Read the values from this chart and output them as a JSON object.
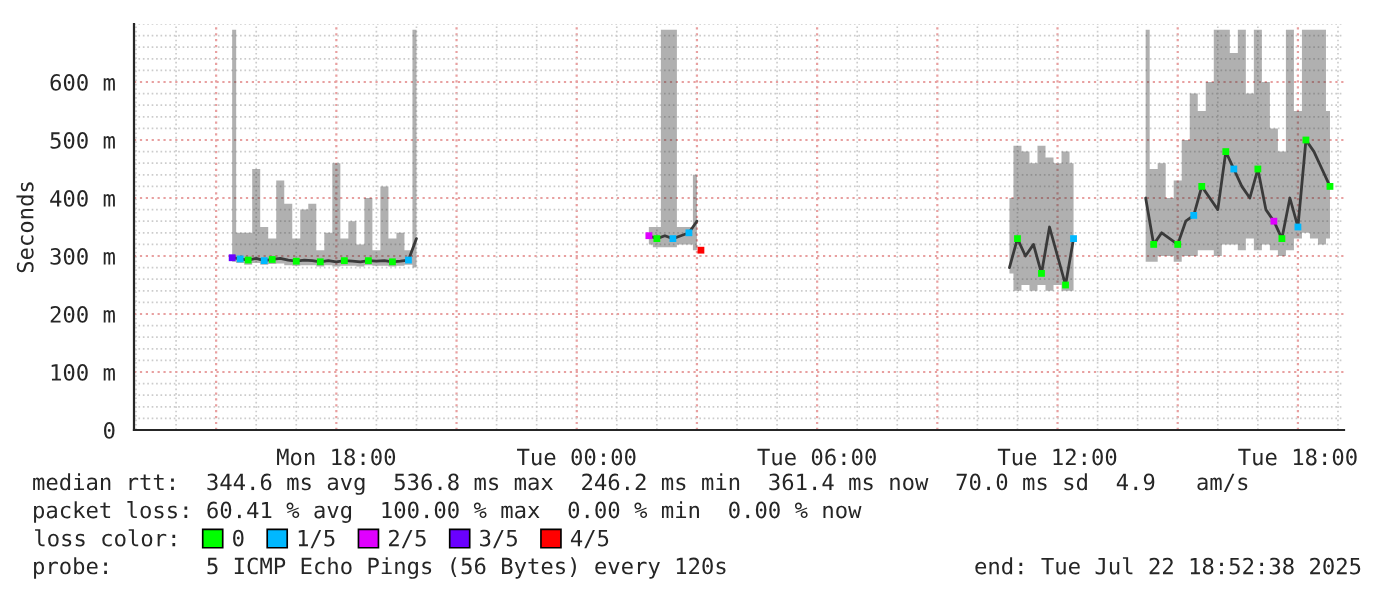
{
  "chart_data": {
    "type": "line",
    "ylabel": "Seconds",
    "legend_title": "loss color:",
    "legend": "bottom",
    "grid": true,
    "xlim": [
      "2025-07-21T12:57",
      "2025-07-22T19:09"
    ],
    "xticks": [
      {
        "value": "2025-07-21T15:00",
        "label": null
      },
      {
        "value": "2025-07-21T18:00",
        "label": "Mon 18:00"
      },
      {
        "value": "2025-07-21T21:00",
        "label": null
      },
      {
        "value": "2025-07-22T00:00",
        "label": "Tue 00:00"
      },
      {
        "value": "2025-07-22T03:00",
        "label": null
      },
      {
        "value": "2025-07-22T06:00",
        "label": "Tue 06:00"
      },
      {
        "value": "2025-07-22T09:00",
        "label": null
      },
      {
        "value": "2025-07-22T12:00",
        "label": "Tue 12:00"
      },
      {
        "value": "2025-07-22T15:00",
        "label": null
      },
      {
        "value": "2025-07-22T18:00",
        "label": "Tue 18:00"
      }
    ],
    "ylim": [
      0,
      700
    ],
    "yticks": [
      0,
      {
        "value": 100,
        "label": "100 m"
      },
      {
        "value": 200,
        "label": "200 m"
      },
      {
        "value": 300,
        "label": "300 m"
      },
      {
        "value": 400,
        "label": "400 m"
      },
      {
        "value": 500,
        "label": "500 m"
      },
      {
        "value": 600,
        "label": "600 m"
      }
    ],
    "annotations": [
      "median rtt:  344.6 ms avg  536.8 ms max  246.2 ms min  361.4 ms now  70.0 ms sd  4.9   am/s",
      "packet loss: 60.41 % avg  100.00 % max  0.00 % min  0.00 % now",
      "probe:       5 ICMP Echo Pings (56 Bytes) every 120s",
      "end: Tue Jul 22 18:52:38 2025"
    ],
    "series": [
      {
        "color": "#3a3a3a",
        "x": [
          "2025-07-21T15:24",
          "2025-07-21T15:36",
          "2025-07-21T15:48",
          "2025-07-21T16:00",
          "2025-07-21T16:12",
          "2025-07-21T16:24",
          "2025-07-21T16:36",
          "2025-07-21T16:48",
          "2025-07-21T17:00",
          "2025-07-21T17:12",
          "2025-07-21T17:24",
          "2025-07-21T17:36",
          "2025-07-21T17:48",
          "2025-07-21T18:00",
          "2025-07-21T18:12",
          "2025-07-21T18:24",
          "2025-07-21T18:36",
          "2025-07-21T18:48",
          "2025-07-21T19:00",
          "2025-07-21T19:12",
          "2025-07-21T19:24",
          "2025-07-21T19:36",
          "2025-07-21T19:48",
          "2025-07-21T20:00",
          "2025-07-21T20:12",
          "2025-07-22T01:48",
          "2025-07-22T02:00",
          "2025-07-22T02:12",
          "2025-07-22T02:24",
          "2025-07-22T02:36",
          "2025-07-22T02:48",
          "2025-07-22T03:00",
          "2025-07-22T03:12",
          "2025-07-22T10:48",
          "2025-07-22T11:00",
          "2025-07-22T11:12",
          "2025-07-22T11:24",
          "2025-07-22T11:36",
          "2025-07-22T11:48",
          "2025-07-22T12:00",
          "2025-07-22T12:12",
          "2025-07-22T12:24",
          "2025-07-22T12:36",
          "2025-07-22T14:12",
          "2025-07-22T14:24",
          "2025-07-22T14:36",
          "2025-07-22T14:48",
          "2025-07-22T15:00",
          "2025-07-22T15:12",
          "2025-07-22T15:24",
          "2025-07-22T15:36",
          "2025-07-22T15:48",
          "2025-07-22T16:00",
          "2025-07-22T16:12",
          "2025-07-22T16:24",
          "2025-07-22T16:36",
          "2025-07-22T16:48",
          "2025-07-22T17:00",
          "2025-07-22T17:12",
          "2025-07-22T17:24",
          "2025-07-22T17:36",
          "2025-07-22T17:48",
          "2025-07-22T18:00",
          "2025-07-22T18:12",
          "2025-07-22T18:24",
          "2025-07-22T18:36",
          "2025-07-22T18:48"
        ],
        "values": [
          297,
          295,
          293,
          296,
          292,
          294,
          296,
          293,
          291,
          293,
          292,
          290,
          292,
          290,
          292,
          291,
          290,
          292,
          291,
          292,
          290,
          291,
          293,
          330,
          null,
          335,
          330,
          335,
          330,
          335,
          340,
          360,
          null,
          280,
          330,
          300,
          320,
          270,
          350,
          300,
          250,
          330,
          null,
          400,
          320,
          340,
          330,
          320,
          360,
          370,
          420,
          400,
          380,
          480,
          450,
          420,
          400,
          450,
          380,
          360,
          330,
          400,
          350,
          500,
          480,
          450,
          420
        ],
        "lower": [
          290,
          288,
          285,
          288,
          285,
          286,
          287,
          284,
          283,
          284,
          284,
          282,
          284,
          282,
          283,
          283,
          282,
          284,
          283,
          283,
          282,
          283,
          285,
          280,
          null,
          320,
          315,
          315,
          315,
          320,
          320,
          310,
          null,
          270,
          240,
          250,
          240,
          250,
          240,
          250,
          240,
          240,
          null,
          290,
          290,
          300,
          300,
          290,
          300,
          300,
          310,
          310,
          300,
          320,
          320,
          310,
          330,
          310,
          320,
          310,
          300,
          310,
          330,
          340,
          330,
          320,
          330
        ],
        "upper": [
          690,
          340,
          340,
          450,
          350,
          330,
          430,
          390,
          330,
          380,
          390,
          310,
          340,
          460,
          330,
          360,
          320,
          400,
          310,
          420,
          330,
          340,
          310,
          690,
          null,
          350,
          350,
          690,
          690,
          350,
          350,
          440,
          null,
          400,
          490,
          480,
          460,
          490,
          470,
          460,
          480,
          460,
          null,
          690,
          450,
          460,
          400,
          430,
          500,
          580,
          550,
          600,
          690,
          690,
          650,
          690,
          580,
          690,
          600,
          520,
          480,
          690,
          550,
          690,
          690,
          690,
          550
        ]
      },
      {
        "type": "scatter",
        "name": "0",
        "color": "#00ff00",
        "x": [
          "2025-07-21T15:48",
          "2025-07-21T16:24",
          "2025-07-21T17:00",
          "2025-07-21T17:36",
          "2025-07-21T18:12",
          "2025-07-21T18:48",
          "2025-07-21T19:24",
          "2025-07-22T02:00",
          "2025-07-22T11:00",
          "2025-07-22T11:36",
          "2025-07-22T12:12",
          "2025-07-22T14:24",
          "2025-07-22T15:00",
          "2025-07-22T15:36",
          "2025-07-22T16:12",
          "2025-07-22T17:00",
          "2025-07-22T17:36",
          "2025-07-22T18:12",
          "2025-07-22T18:48"
        ],
        "values": [
          293,
          294,
          291,
          290,
          292,
          292,
          290,
          330,
          330,
          270,
          250,
          320,
          320,
          420,
          480,
          450,
          330,
          500,
          420
        ]
      },
      {
        "type": "scatter",
        "name": "1/5",
        "color": "#00b8ff",
        "x": [
          "2025-07-21T15:36",
          "2025-07-21T16:12",
          "2025-07-21T19:48",
          "2025-07-22T02:24",
          "2025-07-22T02:48",
          "2025-07-22T12:24",
          "2025-07-22T15:24",
          "2025-07-22T16:24",
          "2025-07-22T18:00"
        ],
        "values": [
          295,
          292,
          293,
          330,
          340,
          330,
          370,
          450,
          350
        ]
      },
      {
        "type": "scatter",
        "name": "2/5",
        "color": "#e000ff",
        "x": [
          "2025-07-22T01:48",
          "2025-07-22T17:24"
        ],
        "values": [
          335,
          360
        ]
      },
      {
        "type": "scatter",
        "name": "3/5",
        "color": "#6a00ff",
        "x": [
          "2025-07-21T15:24"
        ],
        "values": [
          297
        ]
      },
      {
        "type": "scatter",
        "name": "4/5",
        "color": "#ff0000",
        "x": [
          "2025-07-22T03:06"
        ],
        "values": [
          310
        ]
      }
    ]
  }
}
